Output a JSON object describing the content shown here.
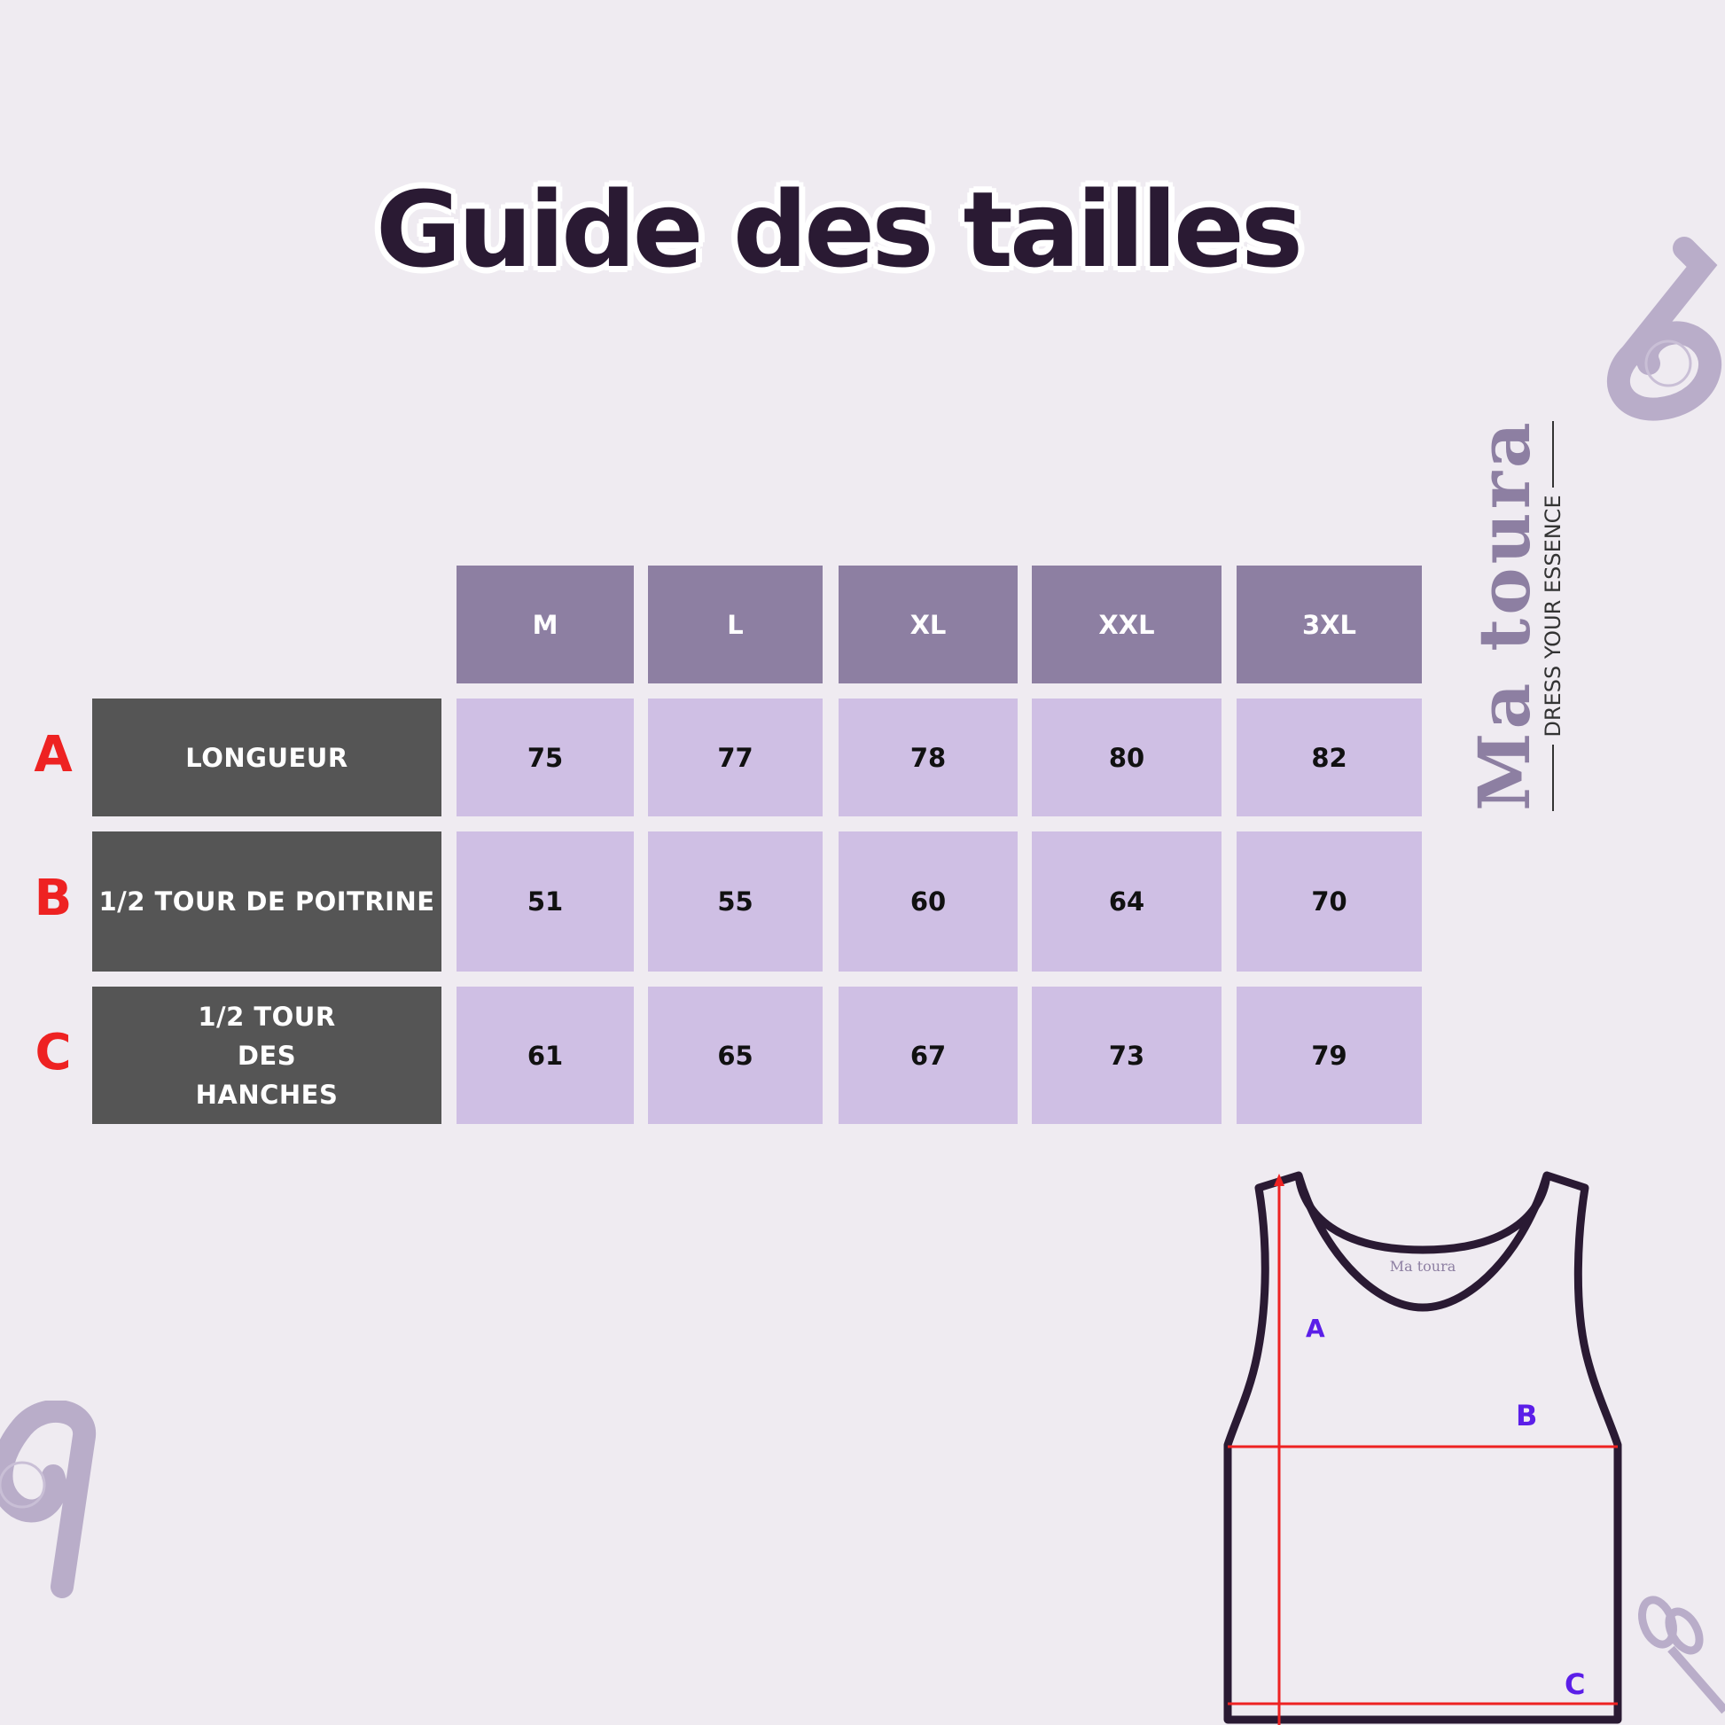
{
  "title": "Guide des tailles",
  "sizes": [
    "M",
    "L",
    "XL",
    "XXL",
    "3XL"
  ],
  "rows": [
    {
      "letter": "A",
      "label": "LONGUEUR",
      "values": [
        "75",
        "77",
        "78",
        "80",
        "82"
      ]
    },
    {
      "letter": "B",
      "label": "1/2 TOUR DE POITRINE",
      "values": [
        "51",
        "55",
        "60",
        "64",
        "70"
      ]
    },
    {
      "letter": "C",
      "label": "1/2 TOUR DES HANCHES",
      "values": [
        "61",
        "65",
        "67",
        "73",
        "79"
      ]
    }
  ],
  "brand": {
    "name": "Ma toura",
    "tagline": "DRESS YOUR ESSENCE"
  },
  "diagram": {
    "labels": [
      "A",
      "B",
      "C"
    ]
  },
  "colors": {
    "header": "#8d7fa2",
    "cell": "#cfbfe4",
    "label": "#555555",
    "background": "#efebf1",
    "title": "#2a1a33",
    "marker": "#ee2222",
    "diagram_letter": "#5b1ee8"
  }
}
